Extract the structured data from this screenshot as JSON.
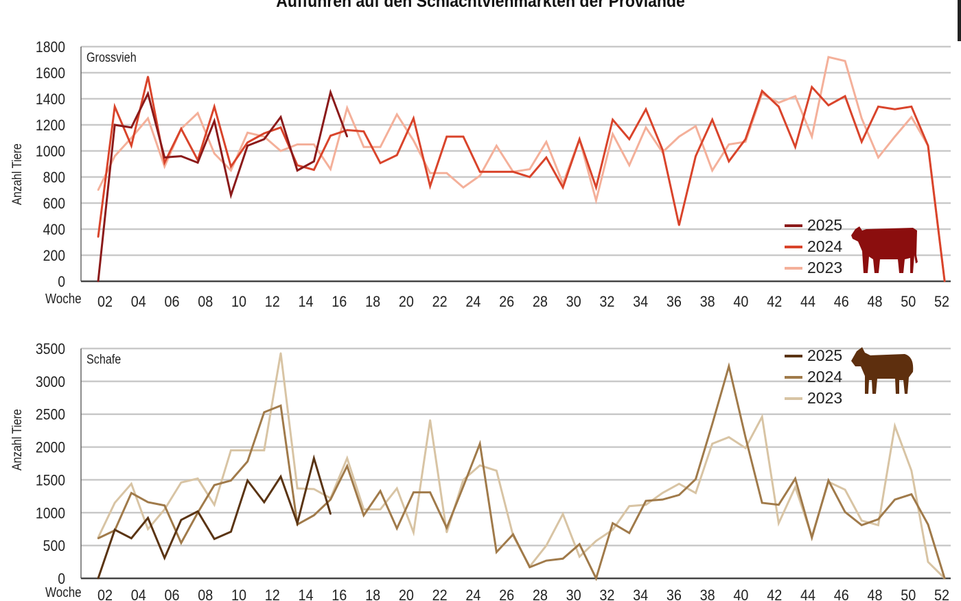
{
  "title": "Auffuhren auf den Schlachtviehmärkten der Proviande",
  "chart_data": [
    {
      "type": "line",
      "title": "Grossvieh",
      "xlabel": "Woche",
      "ylabel": "Anzahl Tiere",
      "ylim": [
        0,
        1800
      ],
      "yticks": [
        "0",
        "200",
        "400",
        "600",
        "800",
        "1000",
        "1200",
        "1400",
        "1600",
        "1800"
      ],
      "xticks": [
        "02",
        "04",
        "06",
        "08",
        "10",
        "12",
        "14",
        "16",
        "18",
        "20",
        "22",
        "24",
        "26",
        "28",
        "30",
        "32",
        "34",
        "36",
        "38",
        "40",
        "42",
        "44",
        "46",
        "48",
        "50",
        "52"
      ],
      "grid": true,
      "legend": "bottom-right",
      "icon": "cow-icon",
      "icon_color": "#8b0e0e",
      "series": [
        {
          "name": "2025",
          "color": "#8b1a1a",
          "values": [
            0,
            1200,
            1180,
            1440,
            950,
            960,
            910,
            1230,
            660,
            1040,
            1090,
            1260,
            850,
            920,
            1450,
            1110
          ]
        },
        {
          "name": "2024",
          "color": "#d9442b",
          "values": [
            340,
            1340,
            1040,
            1570,
            910,
            1170,
            930,
            1340,
            880,
            1065,
            1135,
            1180,
            890,
            855,
            1117,
            1160,
            1150,
            907,
            968,
            1250,
            730,
            1110,
            1110,
            840,
            840,
            840,
            800,
            950,
            720,
            1090,
            720,
            1240,
            1090,
            1320,
            1010,
            430,
            960,
            1240,
            920,
            1090,
            1460,
            1340,
            1030,
            1490,
            1350,
            1420,
            1070,
            1340,
            1320,
            1340,
            1040,
            0
          ]
        },
        {
          "name": "2023",
          "color": "#f4b09a",
          "values": [
            700,
            960,
            1100,
            1250,
            880,
            1170,
            1290,
            980,
            850,
            1140,
            1110,
            1000,
            1050,
            1050,
            860,
            1330,
            1030,
            1030,
            1280,
            1080,
            830,
            830,
            720,
            810,
            1040,
            840,
            860,
            1070,
            750,
            1090,
            620,
            1130,
            890,
            1180,
            990,
            1110,
            1190,
            850,
            1050,
            1070,
            1440,
            1370,
            1420,
            1110,
            1720,
            1690,
            1250,
            950,
            1110,
            1260,
            1040,
            0
          ]
        }
      ]
    },
    {
      "type": "line",
      "title": "Schafe",
      "xlabel": "Woche",
      "ylabel": "Anzahl Tiere",
      "ylim": [
        0,
        3500
      ],
      "yticks": [
        "0",
        "500",
        "1000",
        "1500",
        "2000",
        "2500",
        "3000",
        "3500"
      ],
      "xticks": [
        "02",
        "04",
        "06",
        "08",
        "10",
        "12",
        "14",
        "16",
        "18",
        "20",
        "22",
        "24",
        "26",
        "28",
        "30",
        "32",
        "34",
        "36",
        "38",
        "40",
        "42",
        "44",
        "46",
        "48",
        "50",
        "52"
      ],
      "grid": true,
      "legend": "top-right",
      "icon": "sheep-icon",
      "icon_color": "#5e2f0e",
      "series": [
        {
          "name": "2025",
          "color": "#5a3413",
          "values": [
            0,
            740,
            610,
            920,
            310,
            890,
            1020,
            600,
            710,
            1490,
            1160,
            1550,
            840,
            1830,
            980
          ]
        },
        {
          "name": "2024",
          "color": "#a07a4a",
          "values": [
            610,
            730,
            1300,
            1160,
            1110,
            540,
            1000,
            1420,
            1490,
            1780,
            2530,
            2630,
            820,
            960,
            1200,
            1710,
            960,
            1330,
            760,
            1310,
            1310,
            770,
            1400,
            2050,
            400,
            670,
            170,
            270,
            300,
            520,
            0,
            840,
            690,
            1180,
            1200,
            1270,
            1510,
            2350,
            3230,
            2150,
            1150,
            1120,
            1520,
            620,
            1490,
            1010,
            810,
            900,
            1200,
            1280,
            820,
            0
          ]
        },
        {
          "name": "2023",
          "color": "#d8c4a4",
          "values": [
            620,
            1150,
            1440,
            750,
            1050,
            1460,
            1520,
            1120,
            1950,
            1950,
            1950,
            3430,
            1370,
            1360,
            1220,
            1830,
            1050,
            1050,
            1370,
            700,
            2410,
            700,
            1500,
            1720,
            1640,
            650,
            180,
            500,
            980,
            330,
            570,
            740,
            1100,
            1120,
            1300,
            1440,
            1300,
            2050,
            2150,
            1985,
            2460,
            840,
            1390,
            640,
            1470,
            1350,
            880,
            810,
            2320,
            1640,
            250,
            0
          ]
        }
      ]
    }
  ]
}
